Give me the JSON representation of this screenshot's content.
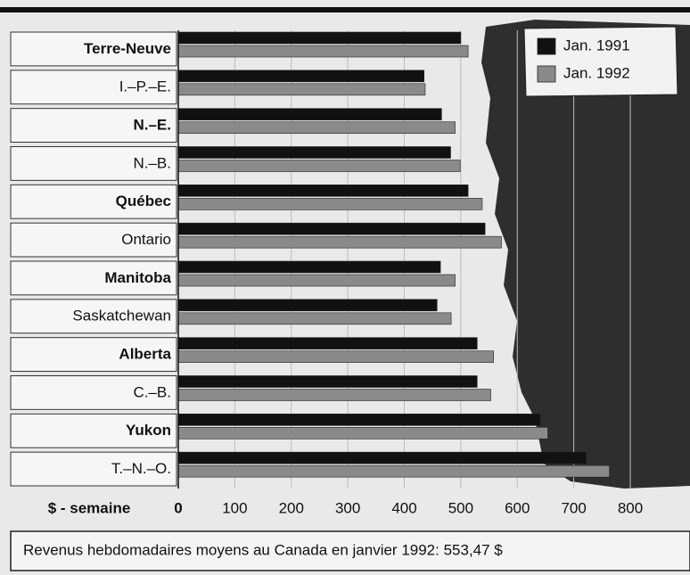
{
  "chart_data": {
    "type": "barh",
    "categories": [
      "Terre-Neuve",
      "I.–P.–E.",
      "N.–E.",
      "N.–B.",
      "Québec",
      "Ontario",
      "Manitoba",
      "Saskatchewan",
      "Alberta",
      "C.–B.",
      "Yukon",
      "T.–N.–O."
    ],
    "series": [
      {
        "name": "Jan. 1991",
        "color": "#111111",
        "values": [
          500,
          435,
          466,
          482,
          513,
          543,
          464,
          458,
          529,
          529,
          641,
          722
        ]
      },
      {
        "name": "Jan. 1992",
        "color": "#8a8a8a",
        "values": [
          513,
          437,
          490,
          499,
          538,
          572,
          490,
          483,
          558,
          553,
          654,
          763
        ]
      }
    ],
    "xlabel": "$ - semaine",
    "xlim": [
      0,
      800
    ],
    "xticks": [
      0,
      100,
      200,
      300,
      400,
      500,
      600,
      700,
      800
    ],
    "grid": true,
    "legend": "top-right",
    "footnote": "Revenus hebdomadaires moyens au Canada en janvier 1992: 553,47 $"
  }
}
